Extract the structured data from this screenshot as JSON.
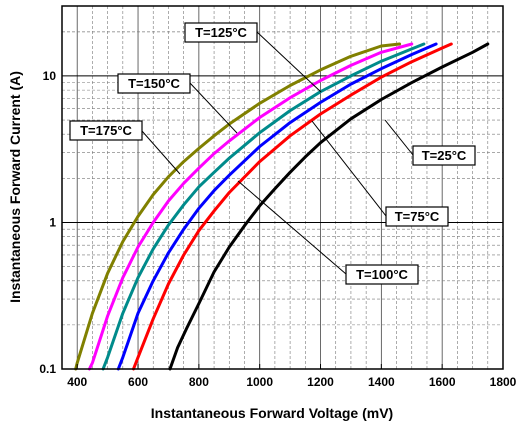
{
  "chart_data": {
    "type": "line",
    "title": "",
    "xlabel": "Instantaneous Forward Voltage (mV)",
    "ylabel": "Instantaneous Forward Current (A)",
    "xlim": [
      350,
      1800
    ],
    "ylim": [
      0.1,
      30
    ],
    "yscale": "log",
    "grid": true,
    "x_ticks": [
      400,
      600,
      800,
      1000,
      1200,
      1400,
      1600,
      1800
    ],
    "y_ticks": [
      {
        "value": 0.1,
        "label": "0.1"
      },
      {
        "value": 1,
        "label": "1"
      },
      {
        "value": 10,
        "label": "10"
      }
    ],
    "series": [
      {
        "name": "T=25°C",
        "color": "#000000",
        "x": [
          705,
          730,
          760,
          800,
          850,
          900,
          950,
          1000,
          1050,
          1100,
          1150,
          1200,
          1300,
          1400,
          1500,
          1600,
          1700,
          1750
        ],
        "y": [
          0.1,
          0.14,
          0.19,
          0.28,
          0.46,
          0.68,
          0.95,
          1.3,
          1.7,
          2.2,
          2.8,
          3.5,
          5.1,
          6.9,
          9.0,
          11.5,
          14.5,
          16.5
        ]
      },
      {
        "name": "T=75°C",
        "color": "#ff0000",
        "x": [
          585,
          600,
          650,
          700,
          750,
          800,
          850,
          900,
          1000,
          1100,
          1200,
          1300,
          1400,
          1500,
          1600,
          1630
        ],
        "y": [
          0.1,
          0.12,
          0.22,
          0.38,
          0.6,
          0.88,
          1.2,
          1.6,
          2.6,
          3.9,
          5.5,
          7.4,
          9.8,
          12.5,
          15.5,
          16.5
        ]
      },
      {
        "name": "T=100°C",
        "color": "#0000ff",
        "x": [
          535,
          550,
          600,
          650,
          700,
          750,
          800,
          850,
          900,
          1000,
          1100,
          1200,
          1300,
          1400,
          1500,
          1580
        ],
        "y": [
          0.1,
          0.12,
          0.24,
          0.4,
          0.62,
          0.9,
          1.25,
          1.65,
          2.1,
          3.3,
          4.8,
          6.6,
          8.8,
          11.2,
          14.0,
          16.5
        ]
      },
      {
        "name": "T=125°C",
        "color": "#008b8b",
        "x": [
          485,
          500,
          550,
          600,
          650,
          700,
          750,
          800,
          850,
          900,
          1000,
          1100,
          1200,
          1300,
          1400,
          1500,
          1540
        ],
        "y": [
          0.1,
          0.12,
          0.24,
          0.42,
          0.66,
          0.96,
          1.32,
          1.75,
          2.2,
          2.75,
          4.1,
          5.8,
          7.8,
          10.0,
          12.6,
          15.3,
          16.5
        ]
      },
      {
        "name": "T=150°C",
        "color": "#ff00ff",
        "x": [
          440,
          450,
          500,
          550,
          600,
          650,
          700,
          750,
          800,
          850,
          900,
          1000,
          1100,
          1200,
          1300,
          1400,
          1500
        ],
        "y": [
          0.1,
          0.11,
          0.23,
          0.42,
          0.68,
          1.0,
          1.4,
          1.85,
          2.35,
          2.95,
          3.6,
          5.2,
          7.1,
          9.3,
          11.8,
          14.5,
          16.5
        ]
      },
      {
        "name": "T=175°C",
        "color": "#808000",
        "x": [
          395,
          400,
          450,
          500,
          550,
          600,
          650,
          700,
          750,
          800,
          850,
          900,
          1000,
          1100,
          1200,
          1300,
          1400,
          1460
        ],
        "y": [
          0.1,
          0.11,
          0.24,
          0.45,
          0.74,
          1.1,
          1.55,
          2.05,
          2.6,
          3.2,
          3.9,
          4.7,
          6.5,
          8.6,
          11.0,
          13.6,
          16.0,
          16.5
        ]
      }
    ],
    "annotations": [
      {
        "text": "T=125°C",
        "target_series": "T=125°C"
      },
      {
        "text": "T=150°C",
        "target_series": "T=150°C"
      },
      {
        "text": "T=175°C",
        "target_series": "T=175°C"
      },
      {
        "text": "T=25°C",
        "target_series": "T=25°C"
      },
      {
        "text": "T=75°C",
        "target_series": "T=75°C"
      },
      {
        "text": "T=100°C",
        "target_series": "T=100°C"
      }
    ]
  }
}
